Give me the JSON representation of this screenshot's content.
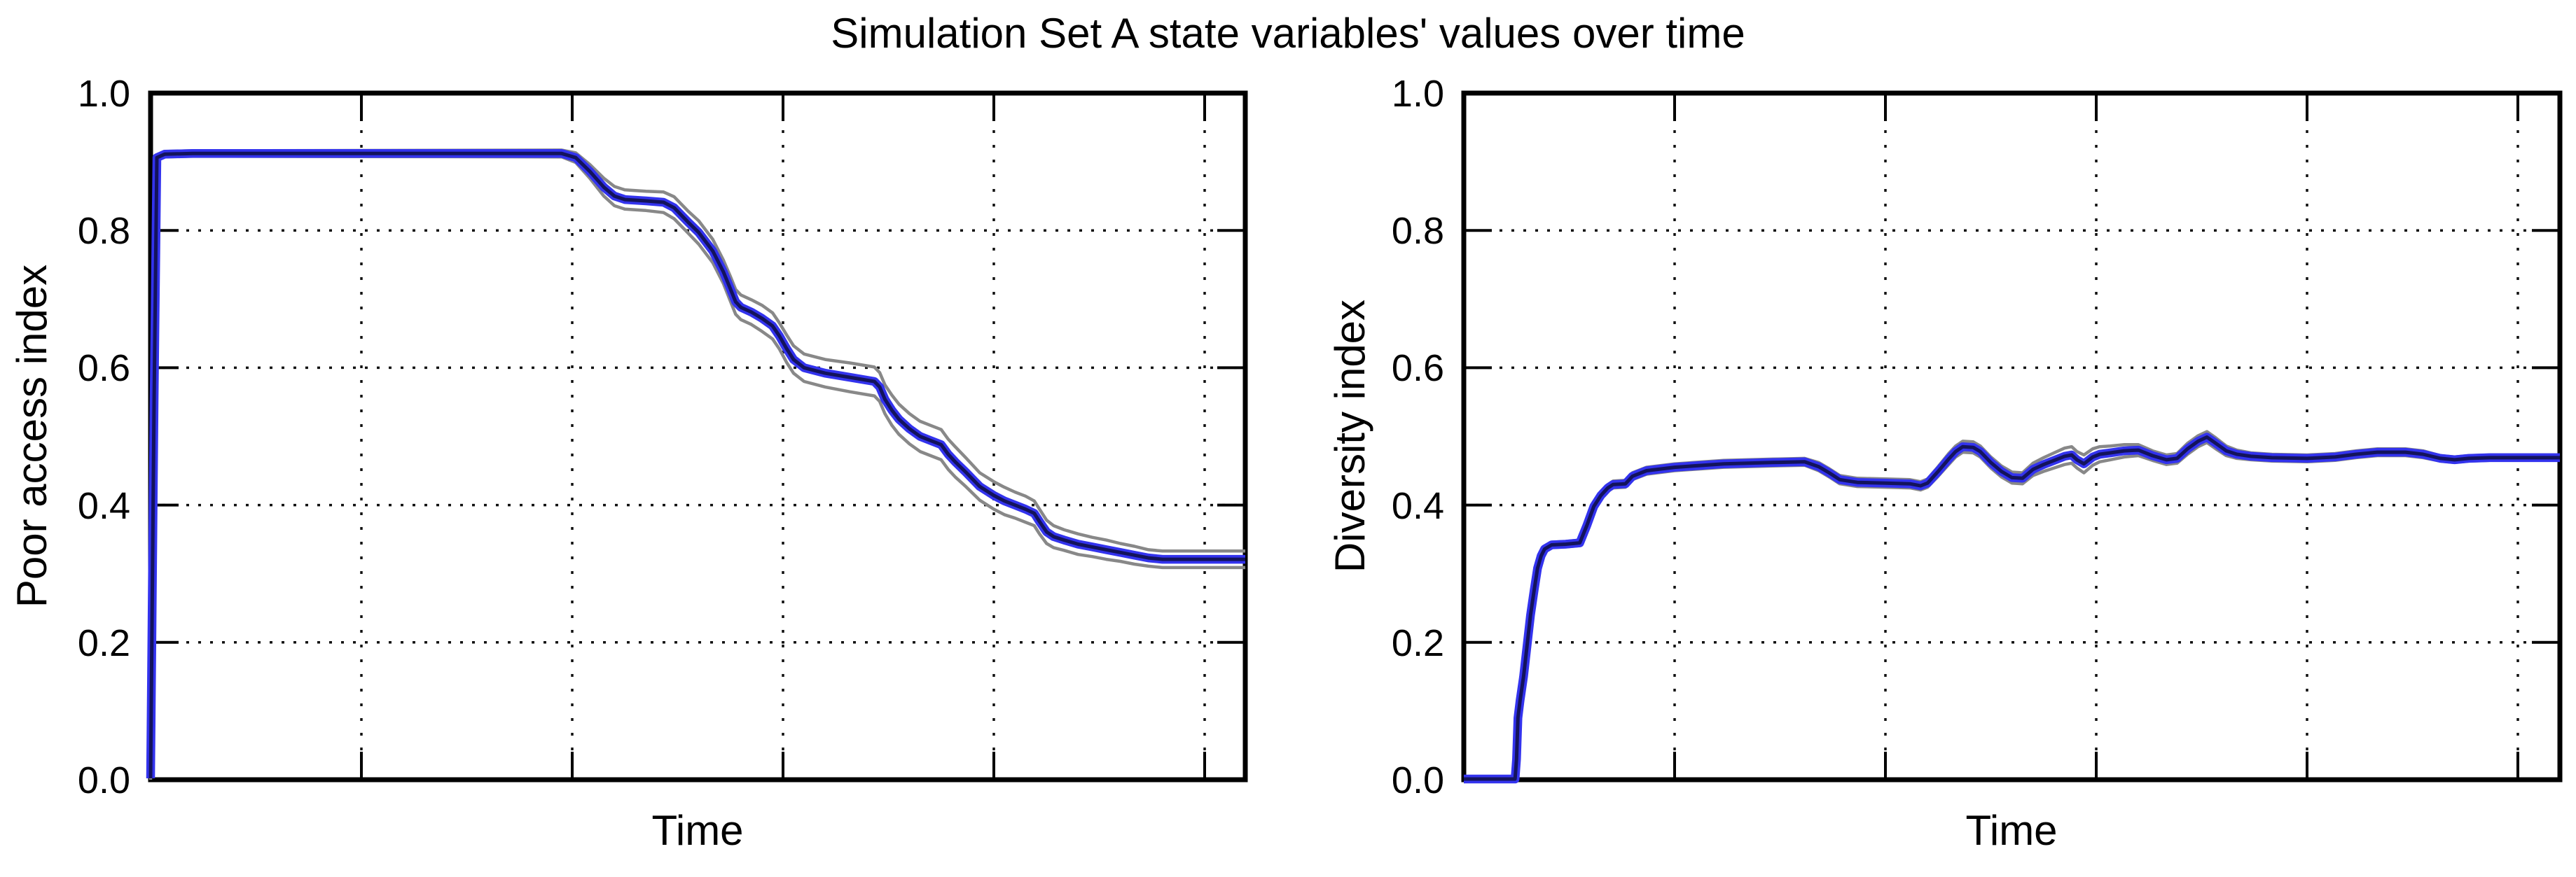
{
  "figure": {
    "title": "Simulation Set A state variables' values over time",
    "background": "#ffffff"
  },
  "chart_data": [
    {
      "type": "line",
      "title": "",
      "xlabel": "Time",
      "ylabel": "Poor access index",
      "xlim": [
        0,
        312
      ],
      "ylim": [
        0.0,
        1.0
      ],
      "xticks": [
        60,
        120,
        180,
        240,
        300
      ],
      "xtick_labels_shown": false,
      "yticks": [
        1.0,
        0.8,
        0.6,
        0.4,
        0.2,
        0.0
      ],
      "ytick_labels": [
        "1.0",
        "0.8",
        "0.6",
        "0.4",
        "0.2",
        "0.0"
      ],
      "grid": "dotted",
      "legend": "none",
      "colors": {
        "mean_core": "#13135c",
        "mean_band": "#3333ee",
        "envelope": "#888888"
      },
      "series": [
        {
          "name": "min-max envelope",
          "style": "gray outline, value = mean ± halfwidth"
        },
        {
          "name": "simulation runs band",
          "style": "thick bright blue"
        },
        {
          "name": "ensemble mean",
          "style": "thin dark navy"
        }
      ],
      "points_format": [
        "time",
        "value",
        "band_halfwidth"
      ],
      "points": [
        [
          0,
          0.002,
          0.002
        ],
        [
          1,
          0.55,
          0.004
        ],
        [
          1.8,
          0.906,
          0.004
        ],
        [
          4,
          0.911,
          0.004
        ],
        [
          12,
          0.912,
          0.004
        ],
        [
          117,
          0.912,
          0.005
        ],
        [
          121,
          0.906,
          0.007
        ],
        [
          125,
          0.886,
          0.01
        ],
        [
          129,
          0.863,
          0.013
        ],
        [
          132,
          0.85,
          0.014
        ],
        [
          135,
          0.845,
          0.014
        ],
        [
          141,
          0.843,
          0.014
        ],
        [
          146,
          0.841,
          0.015
        ],
        [
          149,
          0.833,
          0.016
        ],
        [
          153,
          0.812,
          0.016
        ],
        [
          156,
          0.797,
          0.017
        ],
        [
          160,
          0.77,
          0.017
        ],
        [
          163,
          0.74,
          0.017
        ],
        [
          165,
          0.715,
          0.018
        ],
        [
          166.5,
          0.696,
          0.018
        ],
        [
          168,
          0.688,
          0.018
        ],
        [
          171,
          0.681,
          0.018
        ],
        [
          174,
          0.672,
          0.019
        ],
        [
          177,
          0.661,
          0.019
        ],
        [
          179,
          0.646,
          0.019
        ],
        [
          181,
          0.628,
          0.02
        ],
        [
          183,
          0.612,
          0.02
        ],
        [
          186,
          0.6,
          0.02
        ],
        [
          192,
          0.592,
          0.02
        ],
        [
          199,
          0.586,
          0.021
        ],
        [
          206,
          0.58,
          0.021
        ],
        [
          207.5,
          0.572,
          0.021
        ],
        [
          209,
          0.554,
          0.021
        ],
        [
          211,
          0.538,
          0.022
        ],
        [
          213,
          0.525,
          0.022
        ],
        [
          216,
          0.511,
          0.022
        ],
        [
          219,
          0.5,
          0.022
        ],
        [
          222,
          0.494,
          0.022
        ],
        [
          225,
          0.488,
          0.022
        ],
        [
          227,
          0.474,
          0.022
        ],
        [
          229,
          0.463,
          0.022
        ],
        [
          232,
          0.448,
          0.021
        ],
        [
          236,
          0.427,
          0.02
        ],
        [
          240,
          0.414,
          0.02
        ],
        [
          243,
          0.406,
          0.02
        ],
        [
          246,
          0.4,
          0.019
        ],
        [
          249,
          0.394,
          0.019
        ],
        [
          251.5,
          0.388,
          0.018
        ],
        [
          253,
          0.376,
          0.018
        ],
        [
          255,
          0.361,
          0.017
        ],
        [
          257,
          0.354,
          0.016
        ],
        [
          260,
          0.349,
          0.015
        ],
        [
          264,
          0.343,
          0.015
        ],
        [
          268,
          0.339,
          0.014
        ],
        [
          272,
          0.335,
          0.014
        ],
        [
          276,
          0.331,
          0.013
        ],
        [
          280,
          0.327,
          0.013
        ],
        [
          284,
          0.323,
          0.012
        ],
        [
          288,
          0.321,
          0.012
        ],
        [
          312,
          0.321,
          0.012
        ]
      ]
    },
    {
      "type": "line",
      "title": "",
      "xlabel": "Time",
      "ylabel": "Diversity index",
      "xlim": [
        0,
        313
      ],
      "ylim": [
        0.0,
        1.0
      ],
      "xticks": [
        60,
        120,
        180,
        240,
        300
      ],
      "xtick_labels_shown": false,
      "yticks": [
        1.0,
        0.8,
        0.6,
        0.4,
        0.2,
        0.0
      ],
      "ytick_labels": [
        "1.0",
        "0.8",
        "0.6",
        "0.4",
        "0.2",
        "0.0"
      ],
      "grid": "dotted",
      "legend": "none",
      "colors": {
        "mean_core": "#13135c",
        "mean_band": "#3333ee",
        "envelope": "#888888"
      },
      "series": [
        {
          "name": "min-max envelope",
          "style": "gray outline, value = mean ± halfwidth"
        },
        {
          "name": "simulation runs band",
          "style": "thick bright blue"
        },
        {
          "name": "ensemble mean",
          "style": "thin dark navy"
        }
      ],
      "points_format": [
        "time",
        "value",
        "band_halfwidth"
      ],
      "points": [
        [
          0,
          0.001,
          0.001
        ],
        [
          14.6,
          0.001,
          0.001
        ],
        [
          15.0,
          0.03,
          0.002
        ],
        [
          15.4,
          0.09,
          0.002
        ],
        [
          16,
          0.115,
          0.003
        ],
        [
          17,
          0.15,
          0.003
        ],
        [
          18,
          0.195,
          0.004
        ],
        [
          19,
          0.24,
          0.004
        ],
        [
          20,
          0.275,
          0.004
        ],
        [
          21,
          0.308,
          0.004
        ],
        [
          22,
          0.326,
          0.004
        ],
        [
          23,
          0.336,
          0.004
        ],
        [
          25,
          0.342,
          0.004
        ],
        [
          29,
          0.343,
          0.004
        ],
        [
          33,
          0.345,
          0.004
        ],
        [
          35,
          0.37,
          0.004
        ],
        [
          37,
          0.398,
          0.004
        ],
        [
          39,
          0.414,
          0.005
        ],
        [
          41,
          0.425,
          0.005
        ],
        [
          42.5,
          0.43,
          0.005
        ],
        [
          46,
          0.431,
          0.005
        ],
        [
          48,
          0.442,
          0.005
        ],
        [
          52,
          0.45,
          0.005
        ],
        [
          60,
          0.455,
          0.005
        ],
        [
          74,
          0.46,
          0.005
        ],
        [
          88,
          0.462,
          0.005
        ],
        [
          97,
          0.463,
          0.005
        ],
        [
          101,
          0.456,
          0.006
        ],
        [
          104,
          0.447,
          0.006
        ],
        [
          107,
          0.437,
          0.006
        ],
        [
          112,
          0.433,
          0.006
        ],
        [
          120,
          0.432,
          0.006
        ],
        [
          127,
          0.431,
          0.006
        ],
        [
          130,
          0.428,
          0.006
        ],
        [
          132,
          0.432,
          0.006
        ],
        [
          135,
          0.449,
          0.007
        ],
        [
          138,
          0.467,
          0.008
        ],
        [
          140,
          0.478,
          0.008
        ],
        [
          142,
          0.485,
          0.008
        ],
        [
          145,
          0.484,
          0.008
        ],
        [
          147,
          0.478,
          0.008
        ],
        [
          150,
          0.462,
          0.008
        ],
        [
          153,
          0.449,
          0.008
        ],
        [
          156,
          0.44,
          0.008
        ],
        [
          159,
          0.439,
          0.008
        ],
        [
          162,
          0.452,
          0.009
        ],
        [
          165,
          0.459,
          0.01
        ],
        [
          168,
          0.465,
          0.011
        ],
        [
          171,
          0.471,
          0.012
        ],
        [
          173,
          0.473,
          0.012
        ],
        [
          174.5,
          0.466,
          0.012
        ],
        [
          176.5,
          0.46,
          0.013
        ],
        [
          179,
          0.47,
          0.012
        ],
        [
          181,
          0.474,
          0.011
        ],
        [
          184,
          0.476,
          0.01
        ],
        [
          188,
          0.479,
          0.009
        ],
        [
          192,
          0.48,
          0.008
        ],
        [
          196,
          0.472,
          0.007
        ],
        [
          200,
          0.466,
          0.007
        ],
        [
          203,
          0.468,
          0.007
        ],
        [
          206,
          0.482,
          0.008
        ],
        [
          209,
          0.493,
          0.008
        ],
        [
          211.5,
          0.499,
          0.008
        ],
        [
          214,
          0.49,
          0.008
        ],
        [
          217,
          0.479,
          0.007
        ],
        [
          220,
          0.474,
          0.006
        ],
        [
          224,
          0.471,
          0.005
        ],
        [
          230,
          0.469,
          0.005
        ],
        [
          240,
          0.468,
          0.005
        ],
        [
          248,
          0.47,
          0.005
        ],
        [
          254,
          0.474,
          0.005
        ],
        [
          260,
          0.477,
          0.005
        ],
        [
          268,
          0.477,
          0.005
        ],
        [
          273,
          0.474,
          0.005
        ],
        [
          278,
          0.468,
          0.004
        ],
        [
          282,
          0.466,
          0.004
        ],
        [
          286,
          0.468,
          0.004
        ],
        [
          292,
          0.469,
          0.004
        ],
        [
          313,
          0.469,
          0.004
        ]
      ]
    }
  ]
}
